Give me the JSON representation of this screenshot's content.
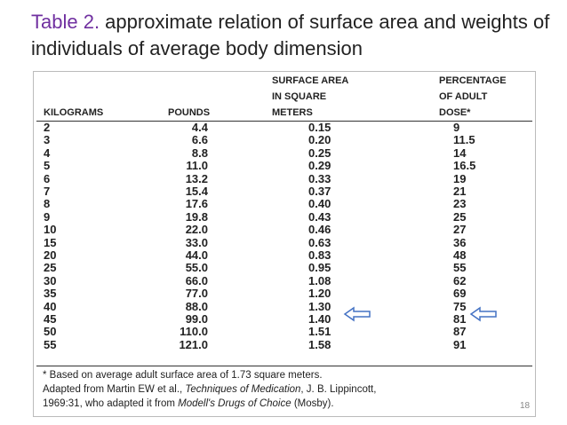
{
  "title": {
    "label": "Table 2.",
    "text": " approximate relation of surface area and weights of individuals of average body dimension"
  },
  "table": {
    "headers": [
      [
        "KILOGRAMS"
      ],
      [
        "POUNDS"
      ],
      [
        "SURFACE AREA",
        "IN SQUARE",
        "METERS"
      ],
      [
        "PERCENTAGE",
        "OF ADULT",
        "DOSE*"
      ]
    ],
    "rows": [
      [
        "2",
        "4.4",
        "0.15",
        "9"
      ],
      [
        "3",
        "6.6",
        "0.20",
        "11.5"
      ],
      [
        "4",
        "8.8",
        "0.25",
        "14"
      ],
      [
        "5",
        "11.0",
        "0.29",
        "16.5"
      ],
      [
        "6",
        "13.2",
        "0.33",
        "19"
      ],
      [
        "7",
        "15.4",
        "0.37",
        "21"
      ],
      [
        "8",
        "17.6",
        "0.40",
        "23"
      ],
      [
        "9",
        "19.8",
        "0.43",
        "25"
      ],
      [
        "10",
        "22.0",
        "0.46",
        "27"
      ],
      [
        "15",
        "33.0",
        "0.63",
        "36"
      ],
      [
        "20",
        "44.0",
        "0.83",
        "48"
      ],
      [
        "25",
        "55.0",
        "0.95",
        "55"
      ],
      [
        "30",
        "66.0",
        "1.08",
        "62"
      ],
      [
        "35",
        "77.0",
        "1.20",
        "69"
      ],
      [
        "40",
        "88.0",
        "1.30",
        "75"
      ],
      [
        "45",
        "99.0",
        "1.40",
        "81"
      ],
      [
        "50",
        "110.0",
        "1.51",
        "87"
      ],
      [
        "55",
        "121.0",
        "1.58",
        "91"
      ]
    ],
    "footnotes": [
      [
        {
          "text": "* Based on average adult surface area of 1.73 square meters.",
          "italic": false
        }
      ],
      [
        {
          "text": "Adapted from Martin EW et al., ",
          "italic": false
        },
        {
          "text": "Techniques of Medication",
          "italic": true
        },
        {
          "text": ", J. B. Lippincott,",
          "italic": false
        }
      ],
      [
        {
          "text": "1969:31, who adapted it from ",
          "italic": false
        },
        {
          "text": "Modell's Drugs of Choice",
          "italic": true
        },
        {
          "text": " (Mosby).",
          "italic": false
        }
      ]
    ]
  },
  "page_number": "18"
}
